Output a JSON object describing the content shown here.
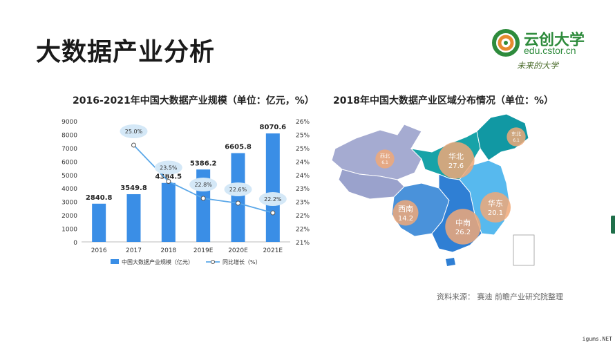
{
  "slide": {
    "title": "大数据产业分析",
    "logo_name": "云创大学",
    "logo_url": "edu.cstor.cn",
    "slogan": "未来的大学",
    "source": "资料来源：  赛迪  前瞻产业研究院整理",
    "watermark": "igums.NET",
    "colors": {
      "bar": "#3a8ee6",
      "line": "#5aa7e8",
      "logo": "#2e8b3c"
    }
  },
  "chart_data": [
    {
      "type": "bar",
      "title": "2016-2021年中国大数据产业规模（单位：亿元，%）",
      "categories": [
        "2016",
        "2017",
        "2018",
        "2019E",
        "2020E",
        "2021E"
      ],
      "series": [
        {
          "name": "中国大数据产业规模（亿元）",
          "kind": "bar",
          "axis": "left",
          "values": [
            2840.8,
            3549.8,
            4384.5,
            5386.2,
            6605.8,
            8070.6
          ],
          "labels": [
            "2840.8",
            "3549.8",
            "4384.5",
            "5386.2",
            "6605.8",
            "8070.6"
          ]
        },
        {
          "name": "同比增长（%）",
          "kind": "line",
          "axis": "right",
          "values": [
            null,
            25.0,
            23.5,
            22.8,
            22.6,
            22.2
          ],
          "labels": [
            "",
            "25.0%",
            "23.5%",
            "22.8%",
            "22.6%",
            "22.2%"
          ]
        }
      ],
      "y_left": {
        "range": [
          0,
          9000
        ],
        "ticks": [
          "0",
          "1000",
          "2000",
          "3000",
          "4000",
          "5000",
          "6000",
          "7000",
          "8000",
          "9000"
        ]
      },
      "y_right": {
        "range": [
          21,
          26
        ],
        "ticks": [
          "21%",
          "22%",
          "22%",
          "23%",
          "23%",
          "24%",
          "24%",
          "25%",
          "25%",
          "26%"
        ]
      },
      "legend_position": "bottom",
      "grid": false
    },
    {
      "type": "map",
      "title": "2018年中国大数据产业区域分布情况（单位：%）",
      "regions": [
        {
          "name": "华北",
          "value": 27.6,
          "label": "27.6",
          "color": "#17a3a8"
        },
        {
          "name": "中南",
          "value": 26.2,
          "label": "26.2",
          "color": "#2f7fd4"
        },
        {
          "name": "华东",
          "value": 20.1,
          "label": "20.1",
          "color": "#57b9ee"
        },
        {
          "name": "西南",
          "value": 14.2,
          "label": "14.2",
          "color": "#4a92da"
        },
        {
          "name": "西北",
          "value": 6.1,
          "label": "6.1",
          "color": "#a5abd1"
        },
        {
          "name": "东北",
          "value": 6.1,
          "label": "6.1",
          "color": "#1198a3"
        }
      ]
    }
  ]
}
